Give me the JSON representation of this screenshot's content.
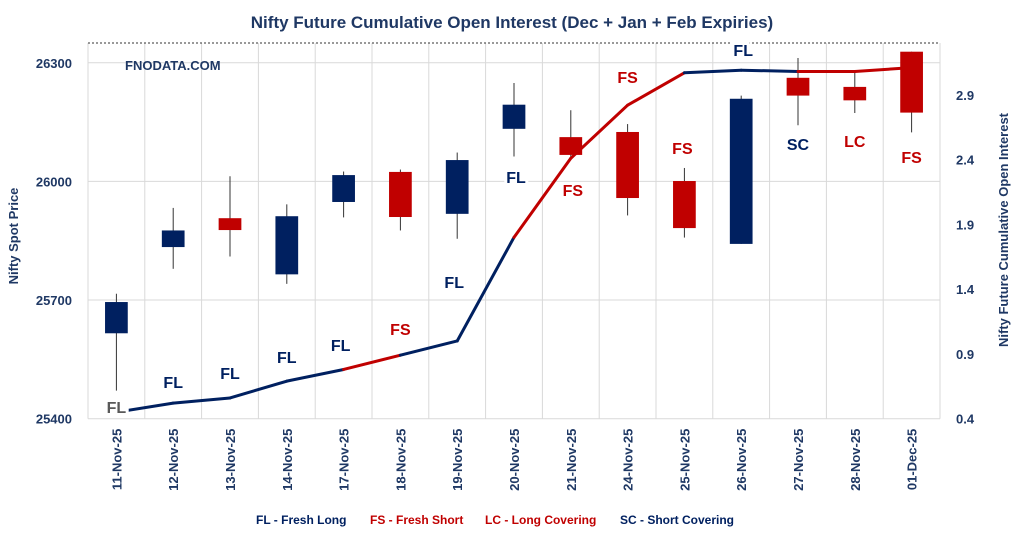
{
  "chart_data": {
    "type": "candlestick+line",
    "title": "Nifty Future Cumulative Open Interest (Dec + Jan  + Feb Expiries)",
    "watermark": "FNODATA.COM",
    "ylabel": "Nifty Spot Price",
    "y2label": "Nifty Future Cumulative Open Interest",
    "ylim": [
      25400,
      26350
    ],
    "yticks": [
      25400,
      25700,
      26000,
      26300
    ],
    "y2lim": [
      0.4,
      3.3
    ],
    "y2ticks": [
      0.4,
      0.9,
      1.4,
      1.9,
      2.4,
      2.9
    ],
    "grid": true,
    "categories": [
      "11-Nov-25",
      "12-Nov-25",
      "13-Nov-25",
      "14-Nov-25",
      "17-Nov-25",
      "18-Nov-25",
      "19-Nov-25",
      "20-Nov-25",
      "21-Nov-25",
      "24-Nov-25",
      "25-Nov-25",
      "26-Nov-25",
      "27-Nov-25",
      "28-Nov-25",
      "01-Dec-25"
    ],
    "ohlc": [
      [
        25616,
        25716,
        25471,
        25695
      ],
      [
        25834,
        25933,
        25779,
        25876
      ],
      [
        25907,
        26013,
        25810,
        25877
      ],
      [
        25765,
        25942,
        25741,
        25912
      ],
      [
        25948,
        26025,
        25909,
        26016
      ],
      [
        26024,
        26030,
        25876,
        25910
      ],
      [
        25918,
        26073,
        25855,
        26054
      ],
      [
        26133,
        26249,
        26063,
        26194
      ],
      [
        26112,
        26180,
        26057,
        26067
      ],
      [
        26125,
        26145,
        25914,
        25958
      ],
      [
        26001,
        26034,
        25858,
        25882
      ],
      [
        25842,
        26217,
        25842,
        26209
      ],
      [
        26262,
        26312,
        26142,
        26217
      ],
      [
        26239,
        26281,
        26173,
        26205
      ],
      [
        26328,
        26328,
        26124,
        26174
      ]
    ],
    "open_interest": [
      0.45,
      0.52,
      0.56,
      0.69,
      0.78,
      0.89,
      1.0,
      1.8,
      2.41,
      2.82,
      3.07,
      3.09,
      3.08,
      3.08,
      3.11
    ],
    "signals": [
      "FL",
      "FL",
      "FL",
      "FL",
      "FL",
      "FS",
      "FL",
      "FL",
      "FS",
      "FS",
      "FS",
      "FL",
      "SC",
      "LC",
      "FS"
    ],
    "legend": [
      "FL - Fresh Long",
      "FS - Fresh Short",
      "LC - Long Covering",
      "SC - Short Covering"
    ],
    "colors": {
      "up": "#002060",
      "down": "#C00000",
      "long": "#002060",
      "short": "#C00000",
      "first_label": "#595959",
      "title": "#1F3864"
    }
  }
}
